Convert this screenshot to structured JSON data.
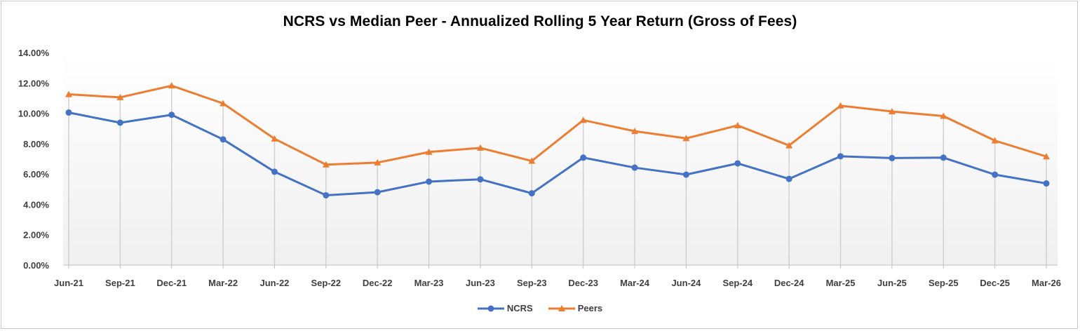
{
  "chart_data": {
    "type": "line",
    "title": "NCRS vs Median Peer - Annualized Rolling 5 Year Return (Gross of Fees)",
    "xlabel": "",
    "ylabel": "",
    "categories": [
      "Jun-21",
      "Sep-21",
      "Dec-21",
      "Mar-22",
      "Jun-22",
      "Sep-22",
      "Dec-22",
      "Mar-23",
      "Jun-23",
      "Sep-23",
      "Dec-23",
      "Mar-24",
      "Jun-24",
      "Sep-24",
      "Dec-24",
      "Mar-25",
      "Jun-25",
      "Sep-25",
      "Dec-25",
      "Mar-26"
    ],
    "ylim": [
      0,
      14
    ],
    "yticks": [
      "0.00%",
      "2.00%",
      "4.00%",
      "6.00%",
      "8.00%",
      "10.00%",
      "12.00%",
      "14.00%"
    ],
    "grid": "vertical drop lines",
    "legend_position": "bottom",
    "series": [
      {
        "name": "NCRS",
        "color": "#4472C4",
        "marker": "circle",
        "values": [
          10.05,
          9.38,
          9.9,
          8.28,
          6.15,
          4.6,
          4.8,
          5.5,
          5.65,
          4.73,
          7.08,
          6.42,
          5.96,
          6.7,
          5.68,
          7.17,
          7.05,
          7.08,
          5.96,
          5.38
        ]
      },
      {
        "name": "Peers",
        "color": "#ED7D31",
        "marker": "triangle",
        "values": [
          11.25,
          11.05,
          11.82,
          10.65,
          8.32,
          6.62,
          6.75,
          7.45,
          7.72,
          6.86,
          9.55,
          8.82,
          8.35,
          9.2,
          7.88,
          10.5,
          10.12,
          9.82,
          8.2,
          7.15
        ]
      }
    ]
  }
}
